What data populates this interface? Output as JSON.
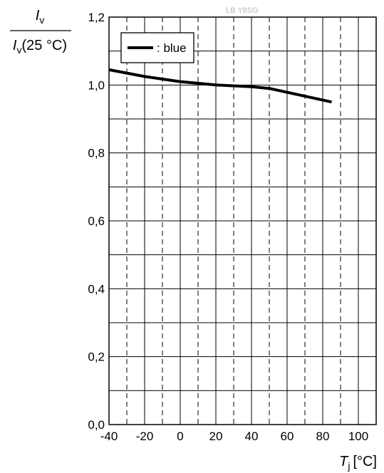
{
  "chart_data": {
    "type": "line",
    "watermark": "LB Y8SG",
    "ylabel": {
      "numerator_symbol": "I",
      "numerator_sub": "v",
      "denominator_symbol": "I",
      "denominator_sub": "v",
      "denominator_arg": "(25 °C)"
    },
    "xlabel": {
      "symbol": "T",
      "sub": "j",
      "unit": "[°C]"
    },
    "xlim": [
      -40,
      110
    ],
    "ylim": [
      0.0,
      1.2
    ],
    "xticks": [
      "-40",
      "-20",
      "0",
      "20",
      "40",
      "60",
      "80",
      "100"
    ],
    "xtick_values": [
      -40,
      -20,
      0,
      20,
      40,
      60,
      80,
      100
    ],
    "yticks": [
      "0,0",
      "0,2",
      "0,4",
      "0,6",
      "0,8",
      "1,0",
      "1,2"
    ],
    "ytick_values": [
      0.0,
      0.2,
      0.4,
      0.6,
      0.8,
      1.0,
      1.2
    ],
    "grid": true,
    "legend": {
      "position": "top-left",
      "label": ": blue"
    },
    "series": [
      {
        "name": "blue",
        "color": "#000000",
        "x": [
          -40,
          -20,
          0,
          20,
          40,
          50,
          85
        ],
        "y": [
          1.045,
          1.025,
          1.01,
          1.0,
          0.995,
          0.99,
          0.95
        ]
      }
    ]
  }
}
